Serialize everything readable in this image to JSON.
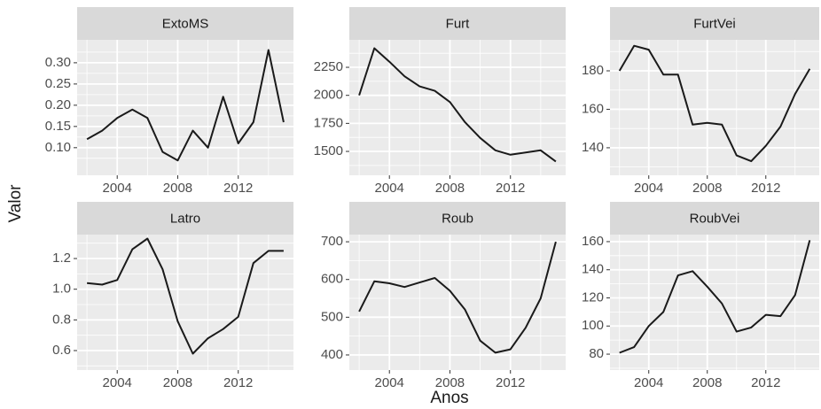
{
  "axis_labels": {
    "x": "Anos",
    "y": "Valor"
  },
  "chart_data": [
    {
      "type": "line",
      "title": "ExtoMS",
      "color": "#1a1a1a",
      "grid": true,
      "x": [
        2002,
        2003,
        2004,
        2005,
        2006,
        2007,
        2008,
        2009,
        2010,
        2011,
        2012,
        2013,
        2014,
        2015
      ],
      "values": [
        0.12,
        0.14,
        0.17,
        0.19,
        0.17,
        0.09,
        0.07,
        0.14,
        0.1,
        0.22,
        0.11,
        0.16,
        0.33,
        0.16
      ],
      "xlim": [
        2001.35,
        2015.65
      ],
      "xticks": [
        2004,
        2008,
        2012
      ],
      "ylim": [
        0.035,
        0.354
      ],
      "yticks": [
        {
          "value": 0.1,
          "label": "0.10"
        },
        0.15,
        {
          "value": 0.2,
          "label": "0.20"
        },
        0.25,
        {
          "value": 0.3,
          "label": "0.30"
        }
      ]
    },
    {
      "type": "line",
      "title": "Furt",
      "color": "#1a1a1a",
      "grid": true,
      "x": [
        2002,
        2003,
        2004,
        2005,
        2006,
        2007,
        2008,
        2009,
        2010,
        2011,
        2012,
        2013,
        2014,
        2015
      ],
      "values": [
        2000,
        2420,
        2300,
        2170,
        2080,
        2040,
        1940,
        1760,
        1620,
        1510,
        1470,
        1490,
        1510,
        1410
      ],
      "xlim": [
        2001.35,
        2015.65
      ],
      "xticks": [
        2004,
        2008,
        2012
      ],
      "ylim": [
        1287,
        2495
      ],
      "yticks": [
        1500,
        1750,
        2000,
        2250
      ]
    },
    {
      "type": "line",
      "title": "FurtVei",
      "color": "#1a1a1a",
      "grid": true,
      "x": [
        2002,
        2003,
        2004,
        2005,
        2006,
        2007,
        2008,
        2009,
        2010,
        2011,
        2012,
        2013,
        2014,
        2015
      ],
      "values": [
        180,
        193,
        191,
        178,
        178,
        152,
        153,
        152,
        136,
        133,
        141,
        151,
        168,
        181
      ],
      "xlim": [
        2001.35,
        2015.65
      ],
      "xticks": [
        2004,
        2008,
        2012
      ],
      "ylim": [
        125.7,
        196.1
      ],
      "yticks": [
        140,
        160,
        180
      ]
    },
    {
      "type": "line",
      "title": "Latro",
      "color": "#1a1a1a",
      "grid": true,
      "x": [
        2002,
        2003,
        2004,
        2005,
        2006,
        2007,
        2008,
        2009,
        2010,
        2011,
        2012,
        2013,
        2014,
        2015
      ],
      "values": [
        1.04,
        1.03,
        1.06,
        1.26,
        1.33,
        1.13,
        0.79,
        0.58,
        0.68,
        0.74,
        0.82,
        1.17,
        1.25,
        1.25
      ],
      "xlim": [
        2001.35,
        2015.65
      ],
      "xticks": [
        2004,
        2008,
        2012
      ],
      "ylim": [
        0.473,
        1.356
      ],
      "yticks": [
        0.6,
        0.8,
        {
          "value": 1.0,
          "label": "1.0"
        },
        1.2
      ]
    },
    {
      "type": "line",
      "title": "Roub",
      "color": "#1a1a1a",
      "grid": true,
      "x": [
        2002,
        2003,
        2004,
        2005,
        2006,
        2007,
        2008,
        2009,
        2010,
        2011,
        2012,
        2013,
        2014,
        2015
      ],
      "values": [
        515,
        595,
        590,
        580,
        592,
        604,
        570,
        520,
        438,
        406,
        415,
        472,
        550,
        700
      ],
      "xlim": [
        2001.35,
        2015.65
      ],
      "xticks": [
        2004,
        2008,
        2012
      ],
      "ylim": [
        360,
        719
      ],
      "yticks": [
        400,
        500,
        600,
        700
      ]
    },
    {
      "type": "line",
      "title": "RoubVei",
      "color": "#1a1a1a",
      "grid": true,
      "x": [
        2002,
        2003,
        2004,
        2005,
        2006,
        2007,
        2008,
        2009,
        2010,
        2011,
        2012,
        2013,
        2014,
        2015
      ],
      "values": [
        81,
        85,
        100,
        110,
        136,
        139,
        128,
        116,
        96,
        99,
        108,
        107,
        122,
        161
      ],
      "xlim": [
        2001.35,
        2015.65
      ],
      "xticks": [
        2004,
        2008,
        2012
      ],
      "ylim": [
        68.7,
        165
      ],
      "yticks": [
        80,
        100,
        120,
        140,
        160
      ]
    }
  ]
}
